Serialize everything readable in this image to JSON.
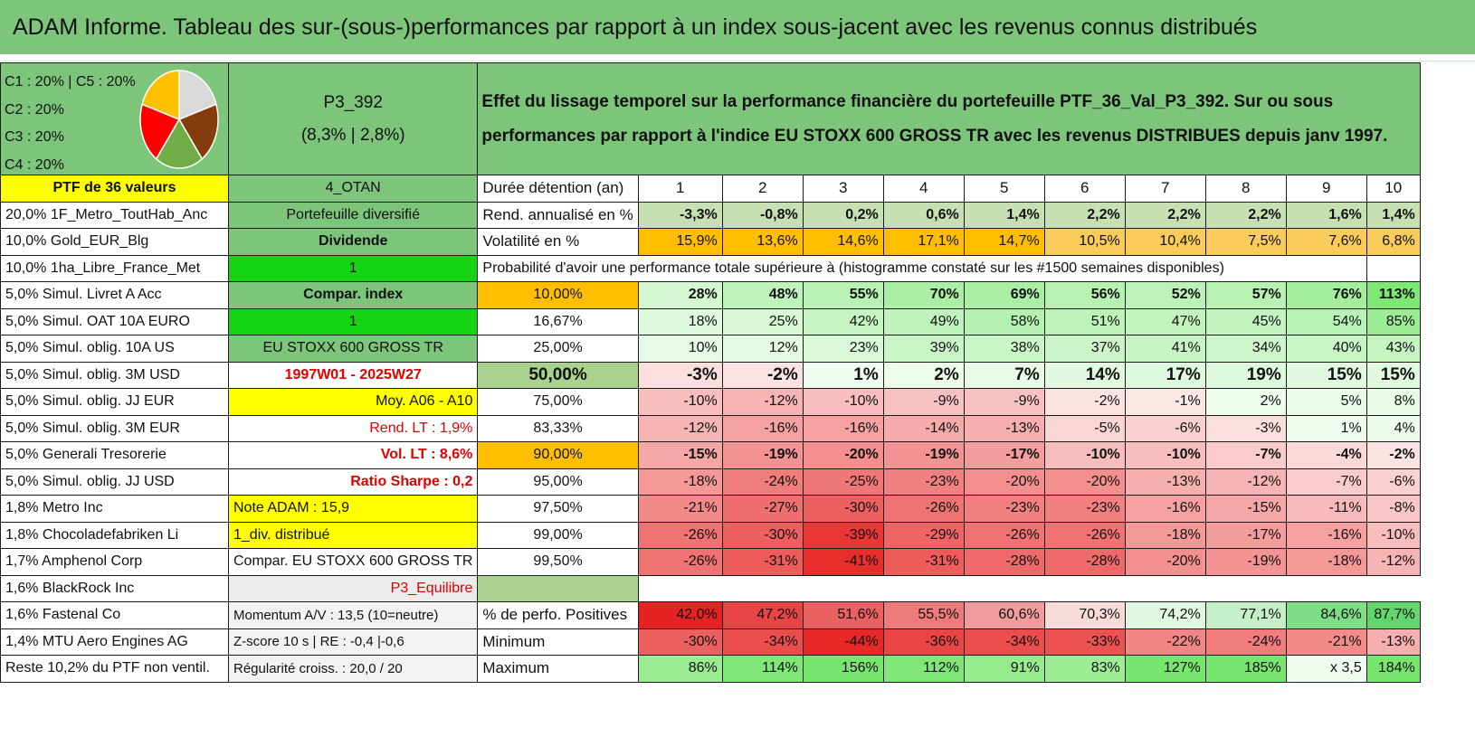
{
  "title": "ADAM Informe. Tableau des sur-(sous-)performances par rapport à un index sous-jacent avec les revenus connus distribués",
  "header": {
    "legend": [
      "C1 : 20% | C5 : 20%",
      "C2 : 20%",
      "C3 : 20%",
      "C4 : 20%"
    ],
    "pie": {
      "slices": [
        {
          "label": "C1",
          "value": 20,
          "color": "#d9d9d9"
        },
        {
          "label": "C2",
          "value": 20,
          "color": "#843c0c"
        },
        {
          "label": "C3",
          "value": 20,
          "color": "#70ad47"
        },
        {
          "label": "C4",
          "value": 20,
          "color": "#ff0000"
        },
        {
          "label": "C5",
          "value": 20,
          "color": "#ffc000"
        }
      ]
    },
    "portfolio_name": "P3_392",
    "portfolio_perf": "(8,3% | 2,8%)",
    "description": "Effet du lissage temporel sur la performance financière du portefeuille PTF_36_Val_P3_392. Sur ou sous performances par rapport à l'indice EU STOXX 600 GROSS TR avec les revenus DISTRIBUES depuis janv 1997."
  },
  "holdings": [
    "PTF de 36 valeurs",
    "20,0% 1F_Metro_ToutHab_Anc",
    "10,0% Gold_EUR_Blg",
    "10,0% 1ha_Libre_France_Met",
    "5,0% Simul. Livret A Acc",
    "5,0% Simul. OAT 10A EURO",
    "5,0% Simul. oblig. 10A US",
    "5,0% Simul. oblig. 3M USD",
    "5,0% Simul. oblig. JJ EUR",
    "5,0% Simul. oblig. 3M EUR",
    "5,0% Generali Tresorerie",
    "5,0% Simul. oblig. JJ USD",
    "1,8% Metro Inc",
    "1,8% Chocoladefabriken Li",
    "1,7% Amphenol Corp",
    "1,6% BlackRock Inc",
    "1,6% Fastenal Co",
    "1,4% MTU Aero Engines AG",
    "Reste 10,2% du PTF non ventil."
  ],
  "params": [
    "4_OTAN",
    "Portefeuille diversifié",
    "Dividende",
    "1",
    "Compar. index",
    "1",
    "EU STOXX 600 GROSS TR",
    "1997W01 - 2025W27",
    "Moy. A06 - A10",
    "Rend. LT : 1,9%",
    "Vol. LT : 8,6%",
    "Ratio Sharpe : 0,2",
    "Note ADAM : 15,9",
    "1_div. distribué",
    "Compar. EU STOXX 600 GROSS TR",
    "P3_Equilibre",
    "Momentum A/V : 13,5 (10=neutre)",
    "Z-score 10 s | RE : -0,4 |-0,6",
    "Régularité croiss. : 20,0 / 20"
  ],
  "duration_label": "Durée détention (an)",
  "years": [
    "1",
    "2",
    "3",
    "4",
    "5",
    "6",
    "7",
    "8",
    "9",
    "10"
  ],
  "return_label": "Rend. annualisé en %",
  "returns": [
    "-3,3%",
    "-0,8%",
    "0,2%",
    "0,6%",
    "1,4%",
    "2,2%",
    "2,2%",
    "2,2%",
    "1,6%",
    "1,4%"
  ],
  "vol_label": "Volatilité en %",
  "vols": [
    "15,9%",
    "13,6%",
    "14,6%",
    "17,1%",
    "14,7%",
    "10,5%",
    "10,4%",
    "7,5%",
    "7,6%",
    "6,8%"
  ],
  "prob_label": "Probabilité d'avoir une performance totale supérieure à (histogramme constaté sur les #1500 semaines disponibles)",
  "prob_rows": [
    {
      "p": "10,00%",
      "v": [
        "28%",
        "48%",
        "55%",
        "70%",
        "69%",
        "56%",
        "52%",
        "57%",
        "76%",
        "113%"
      ]
    },
    {
      "p": "16,67%",
      "v": [
        "18%",
        "25%",
        "42%",
        "49%",
        "58%",
        "51%",
        "47%",
        "45%",
        "54%",
        "85%"
      ]
    },
    {
      "p": "25,00%",
      "v": [
        "10%",
        "12%",
        "23%",
        "39%",
        "38%",
        "37%",
        "41%",
        "34%",
        "40%",
        "43%"
      ]
    },
    {
      "p": "50,00%",
      "v": [
        "-3%",
        "-2%",
        "1%",
        "2%",
        "7%",
        "14%",
        "17%",
        "19%",
        "15%",
        "15%"
      ]
    },
    {
      "p": "75,00%",
      "v": [
        "-10%",
        "-12%",
        "-10%",
        "-9%",
        "-9%",
        "-2%",
        "-1%",
        "2%",
        "5%",
        "8%"
      ]
    },
    {
      "p": "83,33%",
      "v": [
        "-12%",
        "-16%",
        "-16%",
        "-14%",
        "-13%",
        "-5%",
        "-6%",
        "-3%",
        "1%",
        "4%"
      ]
    },
    {
      "p": "90,00%",
      "v": [
        "-15%",
        "-19%",
        "-20%",
        "-19%",
        "-17%",
        "-10%",
        "-10%",
        "-7%",
        "-4%",
        "-2%"
      ]
    },
    {
      "p": "95,00%",
      "v": [
        "-18%",
        "-24%",
        "-25%",
        "-23%",
        "-20%",
        "-20%",
        "-13%",
        "-12%",
        "-7%",
        "-6%"
      ]
    },
    {
      "p": "97,50%",
      "v": [
        "-21%",
        "-27%",
        "-30%",
        "-26%",
        "-23%",
        "-23%",
        "-16%",
        "-15%",
        "-11%",
        "-8%"
      ]
    },
    {
      "p": "99,00%",
      "v": [
        "-26%",
        "-30%",
        "-39%",
        "-29%",
        "-26%",
        "-26%",
        "-18%",
        "-17%",
        "-16%",
        "-10%"
      ]
    },
    {
      "p": "99,50%",
      "v": [
        "-26%",
        "-31%",
        "-41%",
        "-31%",
        "-28%",
        "-28%",
        "-20%",
        "-19%",
        "-18%",
        "-12%"
      ]
    }
  ],
  "pos_label": "% de perfo. Positives",
  "positives": [
    "42,0%",
    "47,2%",
    "51,6%",
    "55,5%",
    "60,6%",
    "70,3%",
    "74,2%",
    "77,1%",
    "84,6%",
    "87,7%"
  ],
  "min_label": "Minimum",
  "minimums": [
    "-30%",
    "-34%",
    "-44%",
    "-36%",
    "-34%",
    "-33%",
    "-22%",
    "-24%",
    "-21%",
    "-13%"
  ],
  "max_label": "Maximum",
  "maximums": [
    "86%",
    "114%",
    "156%",
    "112%",
    "91%",
    "83%",
    "127%",
    "185%",
    "x 3,5",
    "184%"
  ],
  "colors": {
    "header_green": "#7dc57b",
    "light_green": "#a9d28f",
    "bright_green": "#14d414",
    "yellow": "#ffff00",
    "orange": "#ffbf00",
    "red_text": "#e00000"
  }
}
